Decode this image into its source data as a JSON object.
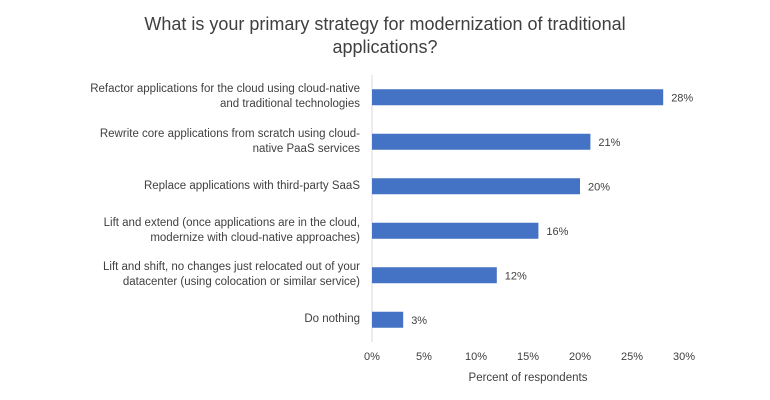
{
  "chart_data": {
    "type": "bar",
    "orientation": "horizontal",
    "title": "What is your primary strategy for modernization of traditional applications?",
    "xlabel": "Percent of respondents",
    "ylabel": "",
    "categories": [
      "Refactor applications for the cloud using cloud-native and traditional technologies",
      "Rewrite core applications from scratch using cloud-native PaaS services",
      "Replace applications with third-party SaaS",
      "Lift and extend (once applications are in the cloud, modernize with cloud-native approaches)",
      "Lift and shift, no changes just relocated out of your datacenter (using colocation or similar service)",
      "Do nothing"
    ],
    "values": [
      28,
      21,
      20,
      16,
      12,
      3
    ],
    "data_labels": [
      "28%",
      "21%",
      "20%",
      "16%",
      "12%",
      "3%"
    ],
    "xlim": [
      0,
      30
    ],
    "xticks": [
      "0%",
      "5%",
      "10%",
      "15%",
      "20%",
      "25%",
      "30%"
    ],
    "grid": false,
    "legend": "none",
    "bar_color": "#4472C4"
  },
  "label_lines": [
    [
      "Refactor applications for the cloud using cloud-native",
      "and traditional technologies"
    ],
    [
      "Rewrite core applications from scratch using cloud-",
      "native PaaS services"
    ],
    [
      "Replace applications with third-party SaaS"
    ],
    [
      "Lift and extend (once applications are in the cloud,",
      "modernize with cloud-native approaches)"
    ],
    [
      "Lift and shift, no changes just relocated out of your",
      "datacenter (using colocation or similar service)"
    ],
    [
      "Do nothing"
    ]
  ],
  "title_lines": [
    "What is your primary strategy for modernization of traditional",
    "applications?"
  ]
}
